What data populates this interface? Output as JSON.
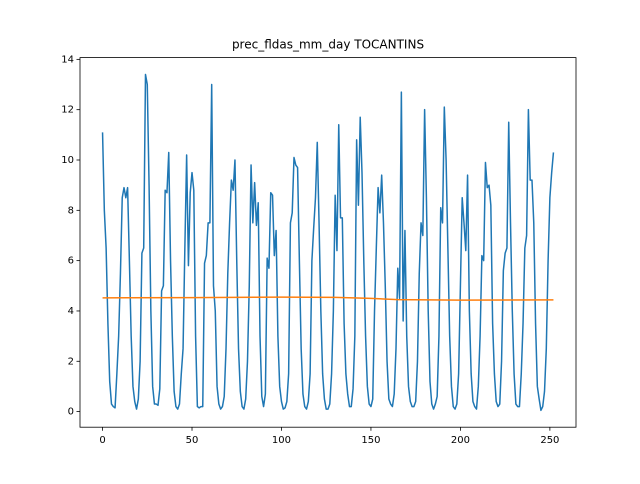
{
  "chart_data": {
    "type": "line",
    "title": "prec_fldas_mm_day TOCANTINS",
    "xlim": [
      -12.6,
      264.6
    ],
    "ylim": [
      -0.62,
      14.07
    ],
    "xticks": [
      0,
      50,
      100,
      150,
      200,
      250
    ],
    "yticks": [
      0,
      2,
      4,
      6,
      8,
      10,
      12,
      14
    ],
    "series": [
      {
        "color": "#1f77b4",
        "x": [
          0,
          1,
          2,
          3,
          4,
          5,
          6,
          7,
          8,
          9,
          10,
          11,
          12,
          13,
          14,
          15,
          16,
          17,
          18,
          19,
          20,
          21,
          22,
          23,
          24,
          25,
          26,
          27,
          28,
          29,
          30,
          31,
          32,
          33,
          34,
          35,
          36,
          37,
          38,
          39,
          40,
          41,
          42,
          43,
          44,
          45,
          46,
          47,
          48,
          49,
          50,
          51,
          52,
          53,
          54,
          55,
          56,
          57,
          58,
          59,
          60,
          61,
          62,
          63,
          64,
          65,
          66,
          67,
          68,
          69,
          70,
          71,
          72,
          73,
          74,
          75,
          76,
          77,
          78,
          79,
          80,
          81,
          82,
          83,
          84,
          85,
          86,
          87,
          88,
          89,
          90,
          91,
          92,
          93,
          94,
          95,
          96,
          97,
          98,
          99,
          100,
          101,
          102,
          103,
          104,
          105,
          106,
          107,
          108,
          109,
          110,
          111,
          112,
          113,
          114,
          115,
          116,
          117,
          118,
          119,
          120,
          121,
          122,
          123,
          124,
          125,
          126,
          127,
          128,
          129,
          130,
          131,
          132,
          133,
          134,
          135,
          136,
          137,
          138,
          139,
          140,
          141,
          142,
          143,
          144,
          145,
          146,
          147,
          148,
          149,
          150,
          151,
          152,
          153,
          154,
          155,
          156,
          157,
          158,
          159,
          160,
          161,
          162,
          163,
          164,
          165,
          166,
          167,
          168,
          169,
          170,
          171,
          172,
          173,
          174,
          175,
          176,
          177,
          178,
          179,
          180,
          181,
          182,
          183,
          184,
          185,
          186,
          187,
          188,
          189,
          190,
          191,
          192,
          193,
          194,
          195,
          196,
          197,
          198,
          199,
          200,
          201,
          202,
          203,
          204,
          205,
          206,
          207,
          208,
          209,
          210,
          211,
          212,
          213,
          214,
          215,
          216,
          217,
          218,
          219,
          220,
          221,
          222,
          223,
          224,
          225,
          226,
          227,
          228,
          229,
          230,
          231,
          232,
          233,
          234,
          235,
          236,
          237,
          238,
          239,
          240,
          241,
          242,
          243,
          244,
          245,
          246,
          247,
          248,
          249,
          250,
          251,
          252
        ],
        "values": [
          11.1,
          8,
          6.5,
          3.5,
          1.2,
          0.3,
          0.2,
          0.15,
          1.5,
          3,
          5.5,
          8.5,
          8.9,
          8.5,
          8.9,
          6,
          3,
          1,
          0.4,
          0.1,
          0.5,
          2,
          6.3,
          6.5,
          13.4,
          13,
          9,
          4,
          1,
          0.3,
          0.3,
          0.25,
          0.9,
          4.8,
          5,
          8.8,
          8.7,
          10.3,
          6,
          3,
          0.8,
          0.2,
          0.1,
          0.3,
          1.5,
          2.5,
          6.5,
          10.2,
          5.8,
          8.7,
          9.5,
          8.8,
          3,
          0.2,
          0.15,
          0.2,
          0.2,
          5.9,
          6.2,
          7.5,
          7.5,
          13,
          5,
          4,
          1,
          0.3,
          0.1,
          0.2,
          0.6,
          2.5,
          5.5,
          7.5,
          9.2,
          8.8,
          10,
          6,
          2.5,
          0.8,
          0.2,
          0.1,
          0.5,
          2,
          5,
          9.8,
          7.5,
          9.1,
          7.4,
          8.3,
          3,
          0.6,
          0.2,
          0.7,
          6.1,
          5.7,
          8.7,
          8.6,
          6.2,
          7.2,
          3,
          1,
          0.4,
          0.1,
          0.15,
          0.4,
          1.5,
          7.5,
          7.9,
          10.1,
          9.8,
          9.7,
          6,
          2.5,
          0.7,
          0.2,
          0.1,
          0.4,
          1.5,
          6,
          7.3,
          8.5,
          10.7,
          7.5,
          4,
          1.5,
          0.5,
          0.1,
          0.1,
          0.3,
          1.5,
          4,
          8.6,
          6.4,
          11.4,
          7.7,
          7.7,
          3.5,
          1.5,
          0.7,
          0.2,
          0.2,
          0.9,
          3,
          10.8,
          8.2,
          11.7,
          9.5,
          6,
          3,
          1,
          0.3,
          0.2,
          0.5,
          4,
          6.5,
          8.9,
          7.9,
          9.4,
          7.5,
          5,
          2,
          0.5,
          0.3,
          0.2,
          0.7,
          2.5,
          5.7,
          4.5,
          12.7,
          3.6,
          7.2,
          3,
          1,
          0.4,
          0.2,
          0.2,
          0.4,
          2,
          5.5,
          7.5,
          7,
          12,
          8.5,
          4,
          1.2,
          0.3,
          0.1,
          0.3,
          0.6,
          3,
          8.1,
          7.5,
          12.1,
          10,
          6.5,
          3,
          1,
          0.2,
          0.1,
          0.3,
          1.5,
          5,
          8.5,
          7.5,
          6.4,
          9.4,
          4,
          1.5,
          0.4,
          0.2,
          0.1,
          1,
          3,
          6.2,
          6,
          9.9,
          8.9,
          9,
          8.2,
          3.5,
          1.5,
          0.4,
          0.2,
          0.3,
          2,
          5.6,
          6.3,
          6.5,
          11.5,
          7.5,
          4,
          1.5,
          0.3,
          0.2,
          0.2,
          1.5,
          3.5,
          6.5,
          7,
          12,
          9.2,
          9.2,
          7.5,
          3.5,
          1,
          0.5,
          0.05,
          0.2,
          0.8,
          2.5,
          6,
          8.5,
          9.5,
          10.3
        ]
      },
      {
        "color": "#ff7f0e",
        "x": [
          0,
          50,
          100,
          130,
          150,
          165,
          200,
          252
        ],
        "values": [
          4.52,
          4.53,
          4.55,
          4.54,
          4.5,
          4.45,
          4.43,
          4.44
        ]
      }
    ]
  }
}
